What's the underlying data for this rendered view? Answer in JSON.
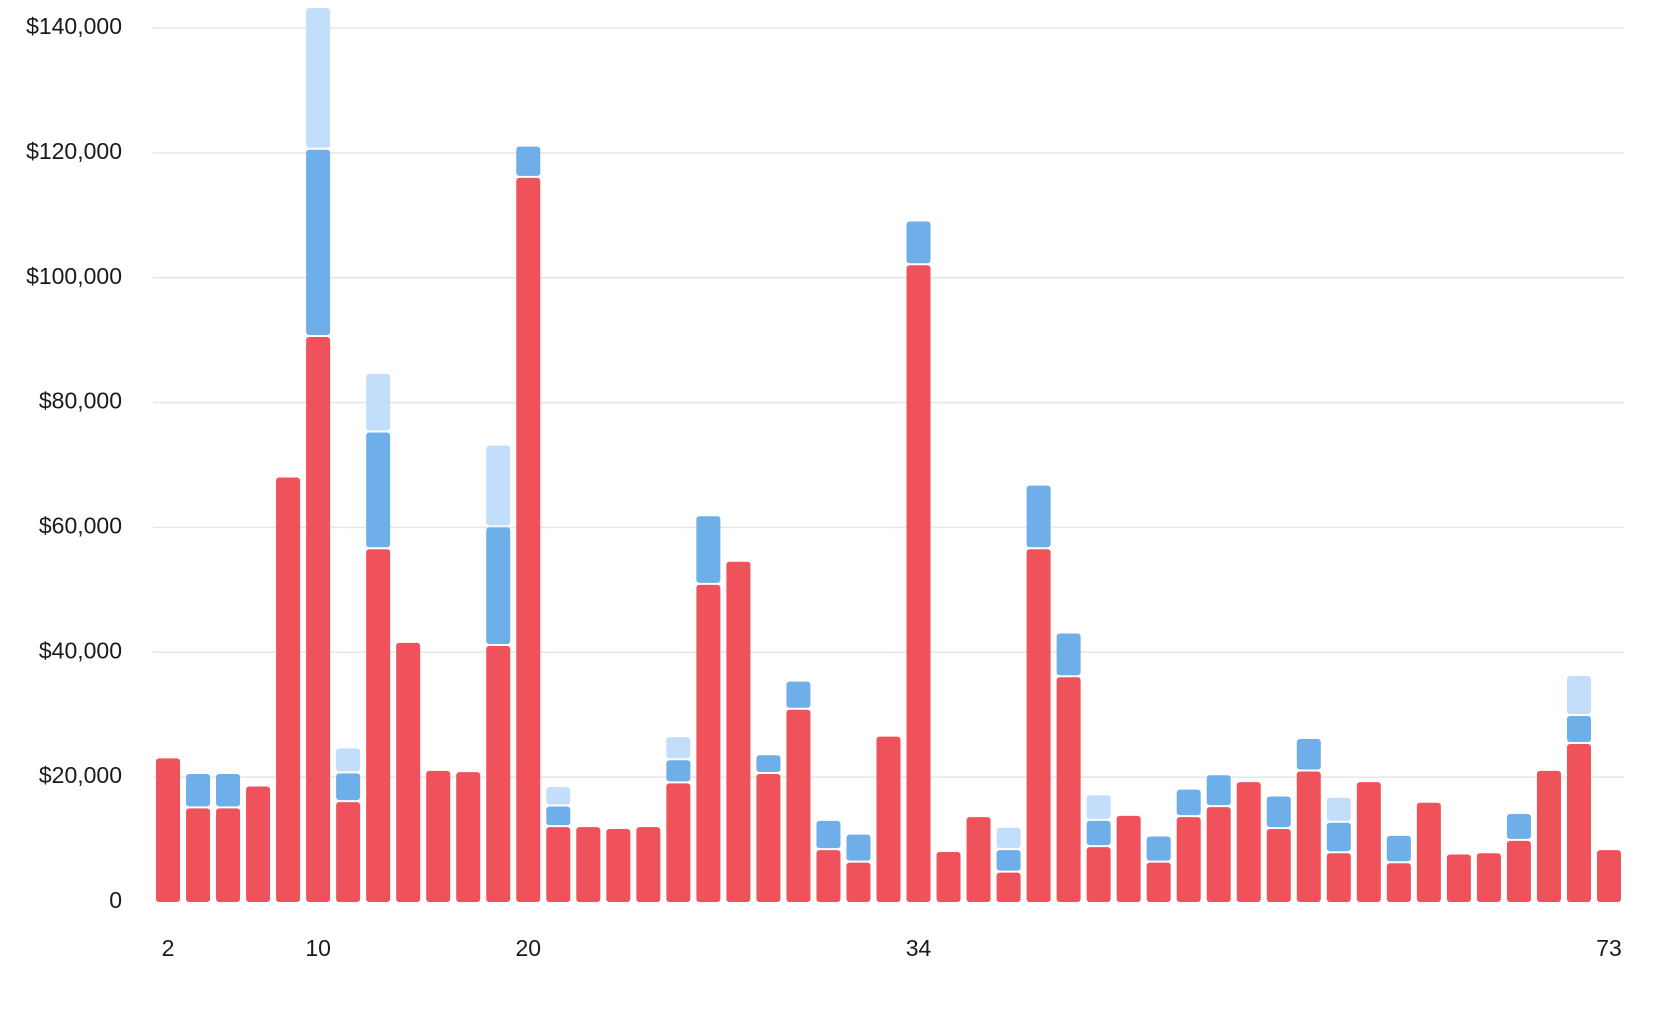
{
  "chart_data": {
    "type": "bar",
    "stacked": true,
    "title": "",
    "xlabel": "",
    "ylabel": "",
    "ylim": [
      0,
      140000
    ],
    "grid": true,
    "legend": "none",
    "y_ticks": [
      {
        "value": 0,
        "label": "0"
      },
      {
        "value": 20000,
        "label": "$20,000"
      },
      {
        "value": 40000,
        "label": "$40,000"
      },
      {
        "value": 60000,
        "label": "$60,000"
      },
      {
        "value": 80000,
        "label": "$80,000"
      },
      {
        "value": 100000,
        "label": "$100,000"
      },
      {
        "value": 120000,
        "label": "$120,000"
      },
      {
        "value": 140000,
        "label": "$140,000"
      }
    ],
    "x_ticks": [
      {
        "index": 0,
        "label": "2"
      },
      {
        "index": 5,
        "label": "10"
      },
      {
        "index": 12,
        "label": "20"
      },
      {
        "index": 25,
        "label": "34"
      },
      {
        "index": 48,
        "label": "73"
      }
    ],
    "colors": [
      "#f0525c",
      "#6eaee9",
      "#c2defb"
    ],
    "series": [
      {
        "values": [
          23000,
          15000,
          15000,
          18500,
          68000,
          90500,
          16000,
          56500,
          41500,
          21000,
          20800,
          41000,
          116000,
          12000,
          12000,
          11700,
          12000,
          19000,
          50800,
          54500,
          20500,
          30800,
          8300,
          6300,
          26500,
          102000,
          8000,
          13600,
          4700,
          56500,
          36000,
          8800,
          13800,
          6300,
          13600,
          15200,
          19200,
          11700,
          20900,
          7800,
          19200,
          6200,
          15900,
          7600,
          7800,
          9800,
          21000,
          25300,
          8300
        ]
      },
      {
        "values": [
          0,
          5500,
          5500,
          0,
          0,
          30000,
          4600,
          18700,
          0,
          0,
          0,
          19000,
          5000,
          3300,
          0,
          0,
          0,
          3700,
          11000,
          0,
          3000,
          4500,
          4700,
          4500,
          0,
          7000,
          0,
          0,
          3600,
          10200,
          7000,
          4200,
          0,
          4200,
          4400,
          5100,
          0,
          5200,
          5200,
          4900,
          0,
          4400,
          0,
          0,
          0,
          4300,
          0,
          4500,
          0
        ]
      },
      {
        "values": [
          0,
          0,
          0,
          0,
          0,
          22700,
          4000,
          9400,
          0,
          0,
          0,
          13100,
          0,
          3100,
          0,
          0,
          0,
          3700,
          0,
          0,
          0,
          0,
          0,
          0,
          0,
          0,
          0,
          0,
          3600,
          0,
          0,
          4100,
          0,
          0,
          0,
          0,
          0,
          0,
          0,
          4000,
          0,
          0,
          0,
          0,
          0,
          0,
          0,
          6400,
          0
        ]
      }
    ]
  }
}
